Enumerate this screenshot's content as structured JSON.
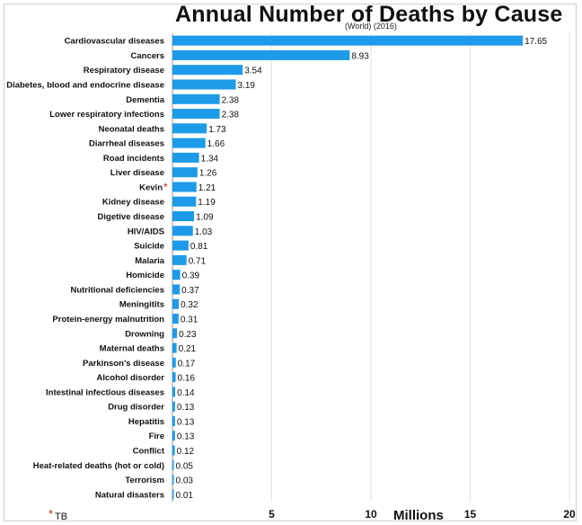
{
  "chart_data": {
    "type": "bar",
    "orientation": "horizontal",
    "title": "Annual Number of Deaths by Cause",
    "subtitle": "(World) (2016)",
    "xlabel": "Millions",
    "xlim": [
      0,
      20
    ],
    "xticks": [
      "5",
      "10",
      "15",
      "20"
    ],
    "grid": true,
    "bar_color": "#1e9be8",
    "highlight_color": "#d62020",
    "categories": [
      "Cardiovascular diseases",
      "Cancers",
      "Respiratory disease",
      "Diabetes, blood and endocrine disease",
      "Dementia",
      "Lower respiratory infections",
      "Neonatal deaths",
      "Diarrheal diseases",
      "Road incidents",
      "Liver disease",
      "Kevin",
      "Kidney disease",
      "Digetive disease",
      "HIV/AIDS",
      "Suicide",
      "Malaria",
      "Homicide",
      "Nutritional deficiencies",
      "Meningitits",
      "Protein-energy malnutrition",
      "Drowning",
      "Maternal deaths",
      "Parkinson's disease",
      "Alcohol disorder",
      "Intestinal infectious diseases",
      "Drug disorder",
      "Hepatitis",
      "Fire",
      "Conflict",
      "Heat-related deaths (hot or cold)",
      "Terrorism",
      "Natural disasters"
    ],
    "values": [
      17.65,
      8.93,
      3.54,
      3.19,
      2.38,
      2.38,
      1.73,
      1.66,
      1.34,
      1.26,
      1.21,
      1.19,
      1.09,
      1.03,
      0.81,
      0.71,
      0.39,
      0.37,
      0.32,
      0.31,
      0.23,
      0.21,
      0.17,
      0.16,
      0.14,
      0.13,
      0.13,
      0.13,
      0.12,
      0.05,
      0.03,
      0.01
    ],
    "value_labels": [
      "17.65",
      "8.93",
      "3.54",
      "3.19",
      "2.38",
      "2.38",
      "1.73",
      "1.66",
      "1.34",
      "1.26",
      "1.21",
      "1.19",
      "1.09",
      "1.03",
      "0.81",
      "0.71",
      "0.39",
      "0.37",
      "0.32",
      "0.31",
      "0.23",
      "0.21",
      "0.17",
      "0.16",
      "0.14",
      "0.13",
      "0.13",
      "0.13",
      "0.12",
      "0.05",
      "0.03",
      "0.01"
    ],
    "annotated_category": "Kevin",
    "annotation_marker": "*",
    "footnote": "TB"
  }
}
